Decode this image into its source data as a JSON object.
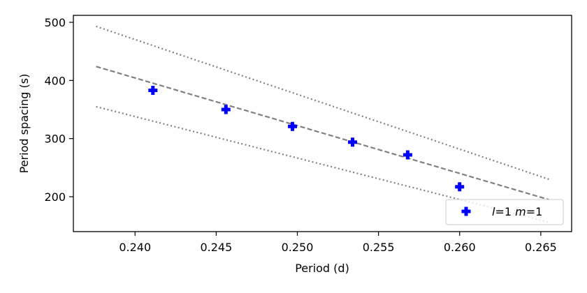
{
  "chart_data": {
    "type": "scatter",
    "xlabel": "Period (d)",
    "ylabel": "Period spacing (s)",
    "xlim": [
      0.2362,
      0.2669
    ],
    "ylim": [
      140,
      512
    ],
    "x_ticks": [
      "0.240",
      "0.245",
      "0.250",
      "0.255",
      "0.260",
      "0.265"
    ],
    "y_ticks": [
      "200",
      "300",
      "400",
      "500"
    ],
    "grid": false,
    "legend_position": "lower-right",
    "legend": {
      "l_text": "l",
      "l_value": "=1",
      "m_text": "m",
      "m_value": "=1"
    },
    "points": {
      "marker": "plus-filled",
      "color": "#0000ff",
      "x": [
        0.2411,
        0.2456,
        0.2497,
        0.2534,
        0.2568,
        0.26
      ],
      "y": [
        383,
        350,
        321,
        294,
        272,
        217
      ]
    },
    "fit_line": {
      "style": "dashed",
      "color": "#808080",
      "x": [
        0.2376,
        0.2655
      ],
      "y": [
        424,
        195
      ]
    },
    "upper_bound": {
      "style": "dotted",
      "color": "#808080",
      "x": [
        0.2376,
        0.2655
      ],
      "y": [
        493,
        230
      ]
    },
    "lower_bound": {
      "style": "dotted",
      "color": "#808080",
      "x": [
        0.2376,
        0.2655
      ],
      "y": [
        355,
        156
      ]
    }
  }
}
